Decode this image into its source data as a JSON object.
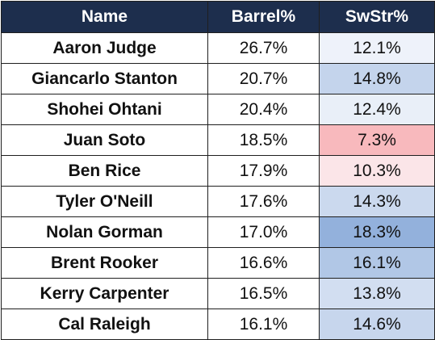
{
  "table": {
    "headers": {
      "name": "Name",
      "barrel": "Barrel%",
      "swstr": "SwStr%"
    },
    "rows": [
      {
        "name": "Aaron Judge",
        "barrel": "26.7%",
        "swstr": "12.1%",
        "swstr_color": "#eef2fa"
      },
      {
        "name": "Giancarlo Stanton",
        "barrel": "20.7%",
        "swstr": "14.8%",
        "swstr_color": "#c4d4ec"
      },
      {
        "name": "Shohei Ohtani",
        "barrel": "20.4%",
        "swstr": "12.4%",
        "swstr_color": "#e9eff8"
      },
      {
        "name": "Juan Soto",
        "barrel": "18.5%",
        "swstr": "7.3%",
        "swstr_color": "#f8b9bd"
      },
      {
        "name": "Ben Rice",
        "barrel": "17.9%",
        "swstr": "10.3%",
        "swstr_color": "#fbe5e8"
      },
      {
        "name": "Tyler O'Neill",
        "barrel": "17.6%",
        "swstr": "14.3%",
        "swstr_color": "#cbd9ee"
      },
      {
        "name": "Nolan Gorman",
        "barrel": "17.0%",
        "swstr": "18.3%",
        "swstr_color": "#93b1dc"
      },
      {
        "name": "Brent Rooker",
        "barrel": "16.6%",
        "swstr": "16.1%",
        "swstr_color": "#b1c7e6"
      },
      {
        "name": "Kerry Carpenter",
        "barrel": "16.5%",
        "swstr": "13.8%",
        "swstr_color": "#d2def1"
      },
      {
        "name": "Cal Raleigh",
        "barrel": "16.1%",
        "swstr": "14.6%",
        "swstr_color": "#c7d6ed"
      }
    ],
    "colors": {
      "header_bg": "#1d2e4d",
      "header_text": "#ffffff",
      "border": "#1f1f1f"
    }
  }
}
